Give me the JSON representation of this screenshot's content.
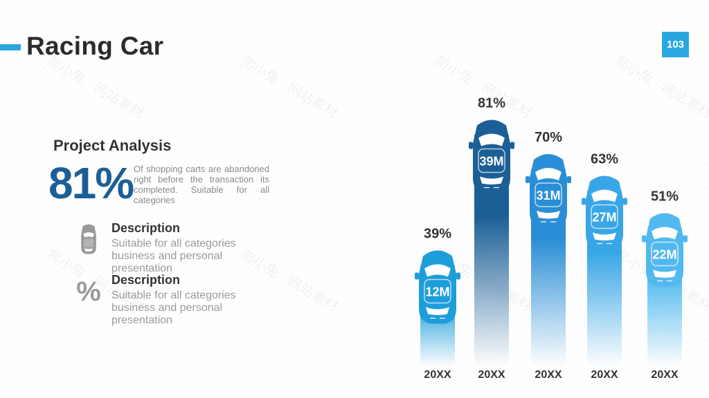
{
  "header": {
    "title": "Racing Car",
    "page_number": "103"
  },
  "analysis": {
    "heading": "Project Analysis",
    "big_value": "81%",
    "text": "Of shopping carts are abandoned right before the transaction its completed. Suitable for all categories"
  },
  "descriptions": [
    {
      "icon": "car-icon",
      "title": "Description",
      "body": "Suitable for all categories business and personal presentation"
    },
    {
      "icon": "percent-icon",
      "icon_glyph": "%",
      "title": "Description",
      "body": "Suitable for all categories business and personal presentation"
    }
  ],
  "colors": {
    "accent": "#29a8e0",
    "title": "#2b2b2b",
    "big_value": "#1c5f96",
    "muted": "#9a9a9a"
  },
  "chart_data": {
    "type": "bar",
    "categories": [
      "20XX",
      "20XX",
      "20XX",
      "20XX",
      "20XX"
    ],
    "values": [
      39,
      81,
      70,
      63,
      51
    ],
    "value_labels": [
      "39%",
      "81%",
      "70%",
      "63%",
      "51%"
    ],
    "inner_labels": [
      "12M",
      "39M",
      "31M",
      "27M",
      "22M"
    ],
    "colors": [
      "#1e9ddb",
      "#1c5f96",
      "#2a8ed6",
      "#38a6e6",
      "#52b9ee"
    ],
    "ylim": [
      0,
      100
    ],
    "title": "",
    "xlabel": "",
    "ylabel": ""
  }
}
